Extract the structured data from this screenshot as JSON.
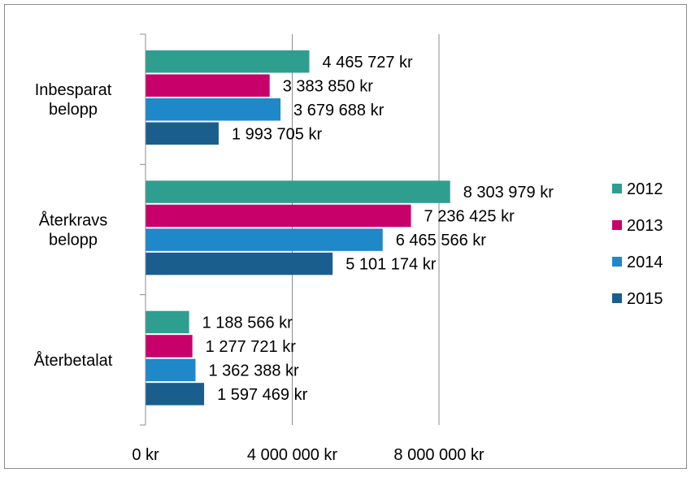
{
  "chart_data": {
    "type": "bar",
    "orientation": "horizontal",
    "categories": [
      [
        "Inbesparat",
        "belopp"
      ],
      [
        "Återkravs",
        "belopp"
      ],
      [
        "Återbetalat"
      ]
    ],
    "series": [
      {
        "name": "2012",
        "color": "#2E9E8F",
        "values": [
          4465727,
          8303979,
          1188566
        ],
        "labels": [
          "4 465 727 kr",
          "8 303 979 kr",
          "1 188 566 kr"
        ]
      },
      {
        "name": "2013",
        "color": "#C8006A",
        "values": [
          3383850,
          7236425,
          1277721
        ],
        "labels": [
          "3 383 850 kr",
          "7 236 425 kr",
          "1 277 721 kr"
        ]
      },
      {
        "name": "2014",
        "color": "#1E88C8",
        "values": [
          3679688,
          6465566,
          1362388
        ],
        "labels": [
          "3 679 688 kr",
          "6 465 566 kr",
          "1 362 388 kr"
        ]
      },
      {
        "name": "2015",
        "color": "#1A5E8E",
        "values": [
          1993705,
          5101174,
          1597469
        ],
        "labels": [
          "1 993 705 kr",
          "5 101 174 kr",
          "1 597 469 kr"
        ]
      }
    ],
    "x_ticks": [
      {
        "value": 0,
        "label": "0 kr"
      },
      {
        "value": 4000000,
        "label": "4 000 000 kr"
      },
      {
        "value": 8000000,
        "label": "8 000 000 kr"
      }
    ],
    "xlim": [
      0,
      10000000
    ],
    "grid": true,
    "legend_position": "right"
  }
}
